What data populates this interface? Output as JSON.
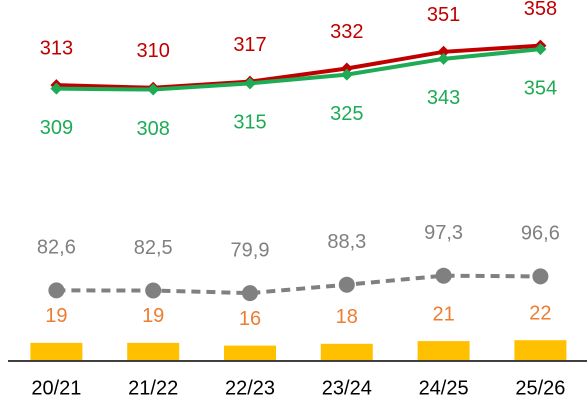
{
  "chart_data": {
    "type": "line",
    "categories": [
      "20/21",
      "21/22",
      "22/23",
      "23/24",
      "24/25",
      "25/26"
    ],
    "ylim": [
      0,
      410
    ],
    "y2lim": [
      13,
      373
    ],
    "y3lim": [
      0,
      400
    ],
    "series": [
      {
        "color": "#c00000",
        "marker": "diamond",
        "values": [
          313,
          310,
          317,
          332,
          351,
          358
        ]
      },
      {
        "color": "#1fab55",
        "marker": "diamond",
        "values": [
          309,
          308,
          315,
          325,
          343,
          354
        ]
      },
      {
        "color": "#808080",
        "marker": "circle",
        "dashed": true,
        "axis": "y2",
        "values": [
          82.6,
          82.5,
          79.9,
          88.3,
          97.3,
          96.6
        ],
        "value_labels": [
          "82,6",
          "82,5",
          "79,9",
          "88,3",
          "97,3",
          "96,6"
        ]
      },
      {
        "type": "bar",
        "color": "#ffc000",
        "label_color": "#ed7d31",
        "axis": "y3",
        "values": [
          19,
          19,
          16,
          18,
          21,
          22
        ]
      }
    ]
  }
}
